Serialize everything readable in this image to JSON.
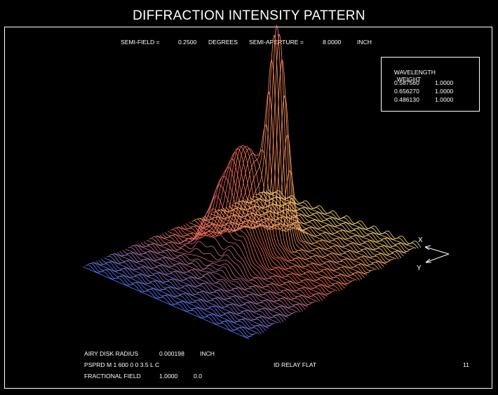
{
  "title": "DIFFRACTION INTENSITY PATTERN",
  "header": {
    "semi_field_label": "SEMI-FIELD =",
    "semi_field_value": "0.2500",
    "semi_field_unit": "DEGREES",
    "semi_aperture_label": "SEMI-APERTURE =",
    "semi_aperture_value": "8.0000",
    "semi_aperture_unit": "INCH"
  },
  "wavelength_table": {
    "header_wavelength": "WAVELENGTH",
    "header_weight": "WEIGHT",
    "rows": [
      {
        "wavelength": "0.587560",
        "weight": "1.0000"
      },
      {
        "wavelength": "0.656270",
        "weight": "1.0000"
      },
      {
        "wavelength": "0.486130",
        "weight": "1.0000"
      }
    ]
  },
  "axes": {
    "x_label": "X",
    "y_label": "Y"
  },
  "footer": {
    "airy_label": "AIRY DISK RADIUS",
    "airy_value": "0.000198",
    "airy_unit": "INCH",
    "command": "PSPRD M 1 600 0 0 3.5 L C",
    "lens_name": "ID RELAY FLAT",
    "page_number": "11",
    "frac_label": "FRACTIONAL FIELD",
    "frac_value_1": "1.0000",
    "frac_value_2": "0.0"
  },
  "chart_data": {
    "type": "surface",
    "title": "DIFFRACTION INTENSITY PATTERN",
    "grid": false,
    "line_colors": {
      "near": "#5a78ff",
      "mid": "#ff6a52",
      "far": "#ffe27a",
      "accent": "#ff3cff"
    },
    "peaks": [
      {
        "name": "main",
        "u": 0.46,
        "v": 0.66,
        "height": 1.0,
        "sigma_u": 0.03,
        "sigma_v": 0.045
      },
      {
        "name": "secondary",
        "u": 0.38,
        "v": 0.55,
        "height": 0.48,
        "sigma_u": 0.06,
        "sigma_v": 0.07
      },
      {
        "name": "shoulder",
        "u": 0.32,
        "v": 0.45,
        "height": 0.22,
        "sigma_u": 0.07,
        "sigma_v": 0.05
      },
      {
        "name": "ridge",
        "u": 0.5,
        "v": 0.45,
        "height": 0.12,
        "sigma_u": 0.05,
        "sigma_v": 0.09
      }
    ]
  }
}
